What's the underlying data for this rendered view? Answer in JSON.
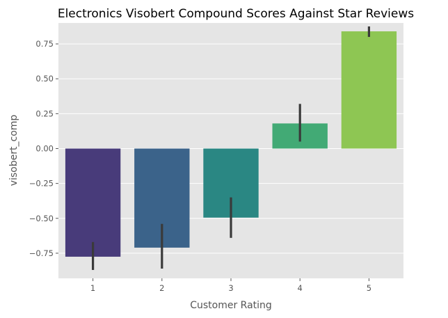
{
  "chart_data": {
    "type": "bar",
    "title": "Electronics Visobert Compound Scores Against Star Reviews",
    "xlabel": "Customer Rating",
    "ylabel": "visobert_comp",
    "categories": [
      "1",
      "2",
      "3",
      "4",
      "5"
    ],
    "values": [
      -0.775,
      -0.71,
      -0.495,
      0.18,
      0.84
    ],
    "error_low": [
      -0.87,
      -0.86,
      -0.64,
      0.05,
      0.8
    ],
    "error_high": [
      -0.67,
      -0.54,
      -0.35,
      0.32,
      0.875
    ],
    "colors": [
      "#483b7a",
      "#3b638a",
      "#2a8783",
      "#42aa75",
      "#8ec653"
    ],
    "error_color": "#3a3a3a",
    "yticks": [
      "−0.75",
      "−0.50",
      "−0.25",
      "0.00",
      "0.25",
      "0.50",
      "0.75"
    ],
    "ytick_values": [
      -0.75,
      -0.5,
      -0.25,
      0.0,
      0.25,
      0.5,
      0.75
    ],
    "ylim": [
      -0.93,
      0.9
    ],
    "grid": true,
    "background": "#e5e5e5",
    "grid_color": "#ffffff"
  }
}
